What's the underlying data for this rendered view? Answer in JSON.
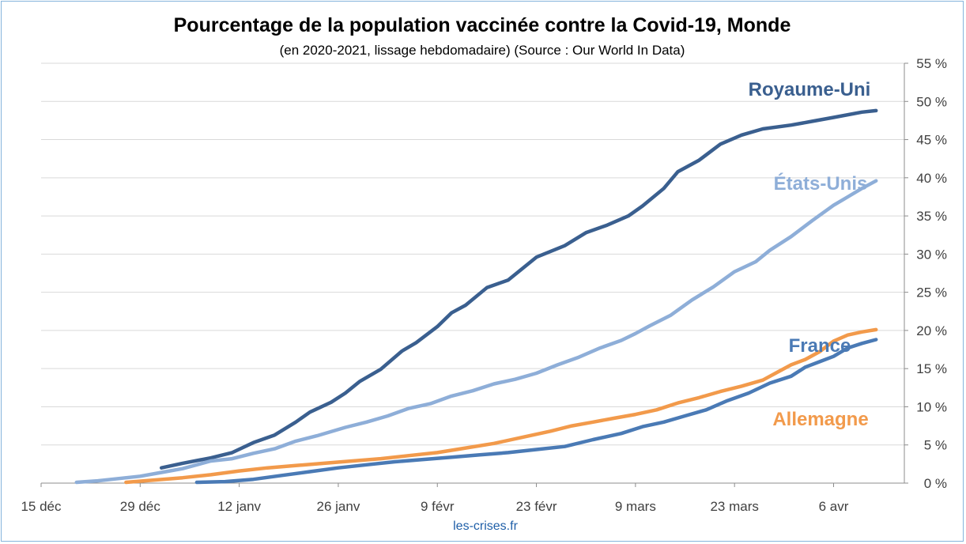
{
  "chart_data": {
    "type": "line",
    "title": "Pourcentage de la population vaccinée contre la Covid-19, Monde",
    "subtitle": "(en 2020-2021, lissage hebdomadaire) (Source : Our World In Data)",
    "source_note": "les-crises.fr",
    "x_axis": {
      "ticks": [
        {
          "label": "15 déc",
          "day": 0
        },
        {
          "label": "29 déc",
          "day": 14
        },
        {
          "label": "12 janv",
          "day": 28
        },
        {
          "label": "26 janv",
          "day": 42
        },
        {
          "label": "9 févr",
          "day": 56
        },
        {
          "label": "23 févr",
          "day": 70
        },
        {
          "label": "9 mars",
          "day": 84
        },
        {
          "label": "23 mars",
          "day": 98
        },
        {
          "label": "6 avr",
          "day": 112
        }
      ],
      "range": [
        0,
        122
      ]
    },
    "y_axis": {
      "ticks": [
        "0 %",
        "5 %",
        "10 %",
        "15 %",
        "20 %",
        "25 %",
        "30 %",
        "35 %",
        "40 %",
        "45 %",
        "50 %",
        "55 %"
      ],
      "range": [
        0,
        55
      ],
      "position": "right"
    },
    "grid": true,
    "series": [
      {
        "name": "Royaume-Uni",
        "color": "#3a5f8f",
        "points": [
          [
            17,
            2.0
          ],
          [
            20,
            2.6
          ],
          [
            24,
            3.3
          ],
          [
            27,
            4.0
          ],
          [
            30,
            5.3
          ],
          [
            33,
            6.3
          ],
          [
            36,
            8.0
          ],
          [
            38,
            9.3
          ],
          [
            41,
            10.6
          ],
          [
            43,
            11.8
          ],
          [
            45,
            13.3
          ],
          [
            48,
            14.9
          ],
          [
            51,
            17.3
          ],
          [
            53,
            18.4
          ],
          [
            56,
            20.5
          ],
          [
            58,
            22.3
          ],
          [
            60,
            23.3
          ],
          [
            63,
            25.6
          ],
          [
            66,
            26.6
          ],
          [
            70,
            29.6
          ],
          [
            74,
            31.1
          ],
          [
            77,
            32.8
          ],
          [
            80,
            33.8
          ],
          [
            83,
            35.0
          ],
          [
            85,
            36.3
          ],
          [
            88,
            38.6
          ],
          [
            90,
            40.8
          ],
          [
            93,
            42.3
          ],
          [
            96,
            44.4
          ],
          [
            99,
            45.6
          ],
          [
            102,
            46.4
          ],
          [
            106,
            46.9
          ],
          [
            109,
            47.4
          ],
          [
            112,
            47.9
          ],
          [
            116,
            48.6
          ],
          [
            118,
            48.8
          ]
        ]
      },
      {
        "name": "États-Unis",
        "color": "#8eaed8",
        "points": [
          [
            5,
            0.1
          ],
          [
            8,
            0.3
          ],
          [
            11,
            0.6
          ],
          [
            14,
            0.9
          ],
          [
            17,
            1.4
          ],
          [
            20,
            1.9
          ],
          [
            24,
            2.9
          ],
          [
            27,
            3.2
          ],
          [
            30,
            3.9
          ],
          [
            33,
            4.5
          ],
          [
            36,
            5.5
          ],
          [
            39,
            6.2
          ],
          [
            43,
            7.3
          ],
          [
            46,
            8.0
          ],
          [
            49,
            8.8
          ],
          [
            52,
            9.8
          ],
          [
            55,
            10.4
          ],
          [
            58,
            11.4
          ],
          [
            61,
            12.1
          ],
          [
            64,
            13.0
          ],
          [
            67,
            13.6
          ],
          [
            70,
            14.4
          ],
          [
            73,
            15.5
          ],
          [
            76,
            16.5
          ],
          [
            79,
            17.7
          ],
          [
            82,
            18.7
          ],
          [
            84,
            19.6
          ],
          [
            86,
            20.6
          ],
          [
            89,
            22.0
          ],
          [
            92,
            24.0
          ],
          [
            95,
            25.7
          ],
          [
            98,
            27.7
          ],
          [
            101,
            29.0
          ],
          [
            103,
            30.5
          ],
          [
            106,
            32.3
          ],
          [
            109,
            34.4
          ],
          [
            112,
            36.4
          ],
          [
            114,
            37.5
          ],
          [
            116,
            38.6
          ],
          [
            118,
            39.6
          ]
        ]
      },
      {
        "name": "France",
        "color": "#4a7ab5",
        "points": [
          [
            22,
            0.1
          ],
          [
            26,
            0.2
          ],
          [
            30,
            0.5
          ],
          [
            34,
            1.0
          ],
          [
            38,
            1.5
          ],
          [
            42,
            2.0
          ],
          [
            46,
            2.4
          ],
          [
            50,
            2.8
          ],
          [
            54,
            3.1
          ],
          [
            58,
            3.4
          ],
          [
            62,
            3.7
          ],
          [
            66,
            4.0
          ],
          [
            70,
            4.4
          ],
          [
            74,
            4.8
          ],
          [
            78,
            5.7
          ],
          [
            82,
            6.5
          ],
          [
            85,
            7.4
          ],
          [
            88,
            8.0
          ],
          [
            91,
            8.8
          ],
          [
            94,
            9.6
          ],
          [
            97,
            10.8
          ],
          [
            100,
            11.8
          ],
          [
            103,
            13.1
          ],
          [
            106,
            14.0
          ],
          [
            108,
            15.2
          ],
          [
            110,
            15.9
          ],
          [
            112,
            16.6
          ],
          [
            114,
            17.7
          ],
          [
            116,
            18.3
          ],
          [
            118,
            18.8
          ]
        ]
      },
      {
        "name": "Allemagne",
        "color": "#f29a4b",
        "points": [
          [
            12,
            0.1
          ],
          [
            16,
            0.4
          ],
          [
            20,
            0.7
          ],
          [
            24,
            1.1
          ],
          [
            28,
            1.6
          ],
          [
            32,
            2.0
          ],
          [
            36,
            2.3
          ],
          [
            40,
            2.6
          ],
          [
            44,
            2.9
          ],
          [
            48,
            3.2
          ],
          [
            52,
            3.6
          ],
          [
            56,
            4.0
          ],
          [
            60,
            4.6
          ],
          [
            64,
            5.2
          ],
          [
            68,
            6.0
          ],
          [
            72,
            6.8
          ],
          [
            75,
            7.5
          ],
          [
            78,
            8.0
          ],
          [
            81,
            8.5
          ],
          [
            84,
            9.0
          ],
          [
            87,
            9.6
          ],
          [
            90,
            10.5
          ],
          [
            93,
            11.2
          ],
          [
            96,
            12.0
          ],
          [
            99,
            12.7
          ],
          [
            102,
            13.5
          ],
          [
            104,
            14.5
          ],
          [
            106,
            15.5
          ],
          [
            108,
            16.2
          ],
          [
            110,
            17.2
          ],
          [
            112,
            18.6
          ],
          [
            114,
            19.4
          ],
          [
            116,
            19.8
          ],
          [
            118,
            20.1
          ]
        ]
      }
    ]
  }
}
